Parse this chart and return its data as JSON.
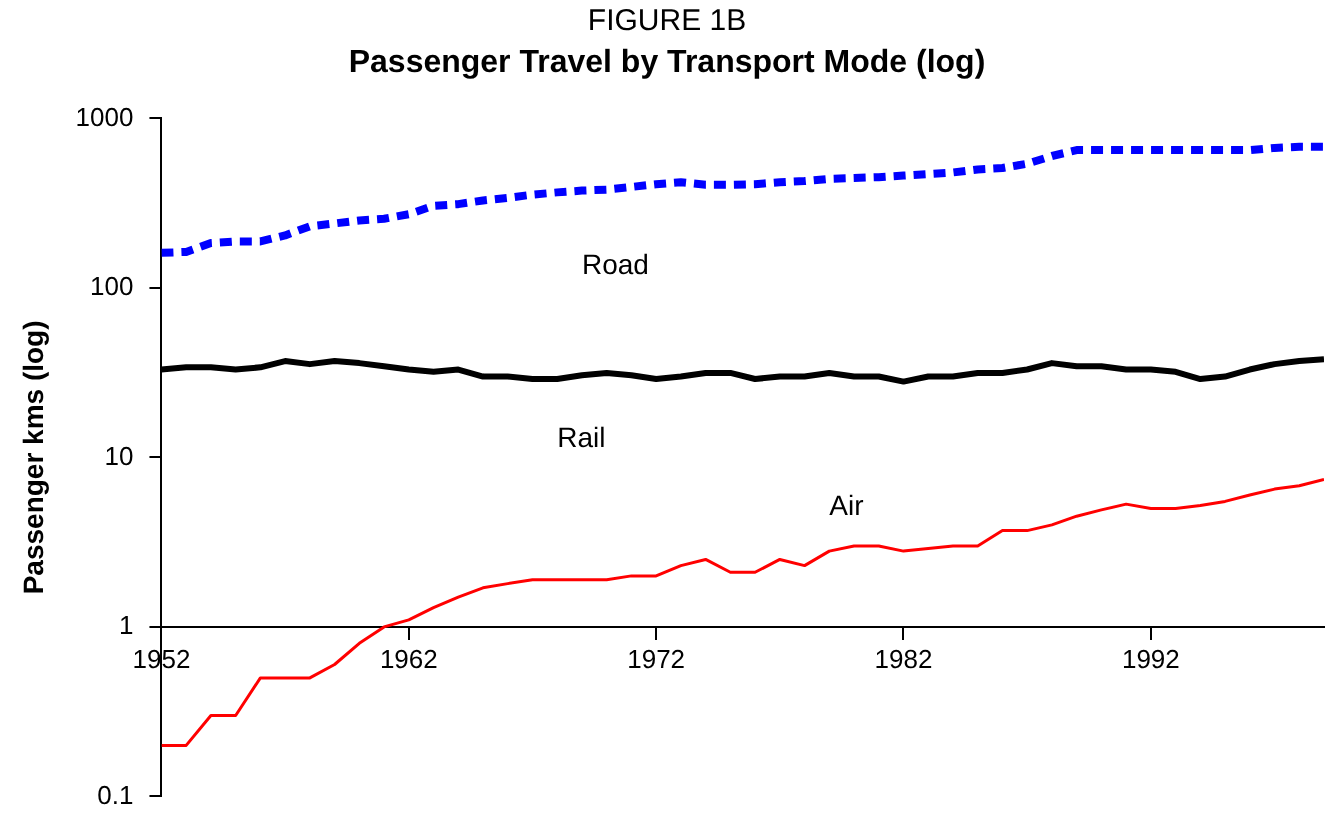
{
  "chart_data": {
    "type": "line",
    "title": "FIGURE 1B",
    "subtitle": "Passenger Travel by Transport Mode (log)",
    "ylabel": "Passenger kms (log)",
    "x": [
      1952,
      1953,
      1954,
      1955,
      1956,
      1957,
      1958,
      1959,
      1960,
      1961,
      1962,
      1963,
      1964,
      1965,
      1966,
      1967,
      1968,
      1969,
      1970,
      1971,
      1972,
      1973,
      1974,
      1975,
      1976,
      1977,
      1978,
      1979,
      1980,
      1981,
      1982,
      1983,
      1984,
      1985,
      1986,
      1987,
      1988,
      1989,
      1990,
      1991,
      1992,
      1993,
      1994,
      1995,
      1996,
      1997,
      1998,
      1999
    ],
    "series": [
      {
        "name": "Road",
        "color": "#0000ff",
        "line_style": "dashed",
        "values": [
          161,
          163,
          184,
          188,
          188,
          204,
          231,
          240,
          250,
          256,
          272,
          305,
          312,
          328,
          340,
          355,
          366,
          375,
          380,
          394,
          409,
          420,
          406,
          406,
          409,
          420,
          427,
          440,
          445,
          450,
          460,
          470,
          480,
          500,
          510,
          540,
          600,
          650,
          650,
          650,
          650,
          650,
          650,
          650,
          650,
          670,
          680,
          680
        ]
      },
      {
        "name": "Rail",
        "color": "#000000",
        "line_style": "solid",
        "values": [
          33,
          34,
          34,
          33,
          34,
          37,
          35.5,
          37,
          36,
          34.5,
          33,
          32,
          33,
          30,
          30,
          29,
          29,
          30.5,
          31.5,
          30.5,
          29,
          30,
          31.5,
          31.5,
          29,
          30,
          30,
          31.5,
          30,
          30,
          28,
          30,
          30,
          31.5,
          31.5,
          33,
          36,
          34.5,
          34.5,
          33,
          33,
          32,
          29,
          30,
          33,
          35.5,
          37,
          38
        ]
      },
      {
        "name": "Air",
        "color": "#ff0000",
        "line_style": "solid",
        "values": [
          0.2,
          0.2,
          0.3,
          0.3,
          0.5,
          0.5,
          0.5,
          0.6,
          0.8,
          1.0,
          1.1,
          1.3,
          1.5,
          1.7,
          1.8,
          1.9,
          1.9,
          1.9,
          1.9,
          2.0,
          2.0,
          2.3,
          2.5,
          2.1,
          2.1,
          2.5,
          2.3,
          2.8,
          3.0,
          3.0,
          2.8,
          2.9,
          3.0,
          3.0,
          3.7,
          3.7,
          4.0,
          4.5,
          4.9,
          5.3,
          5.0,
          5.0,
          5.2,
          5.5,
          6.0,
          6.5,
          6.8,
          7.4
        ]
      }
    ],
    "log": "y",
    "xlim": [
      1952,
      1999
    ],
    "xticks": [
      1952,
      1962,
      1972,
      1982,
      1992
    ],
    "ylim": [
      0.1,
      1000
    ],
    "yticks": [
      0.1,
      1,
      10,
      100,
      1000
    ],
    "grid": false,
    "legend": false,
    "marker": "none"
  }
}
